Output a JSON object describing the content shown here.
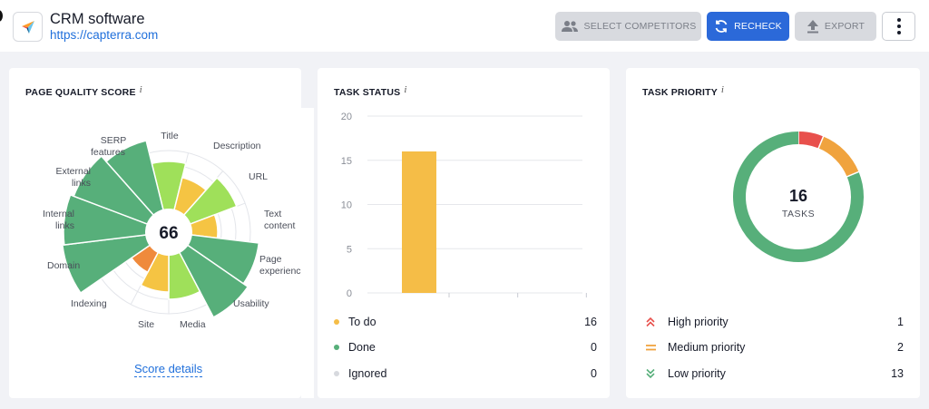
{
  "header": {
    "title": "CRM software",
    "url": "https://capterra.com",
    "buttons": {
      "select_competitors": "SELECT COMPETITORS",
      "recheck": "RECHECK",
      "export": "EXPORT"
    }
  },
  "quality": {
    "title": "PAGE QUALITY SCORE",
    "info": "i",
    "score": "66",
    "details_link": "Score details",
    "colors": {
      "green": "#57af7a",
      "light_green": "#9fe05a",
      "yellow": "#f5c443",
      "orange": "#ef8a3c"
    },
    "labels": {
      "title": "Title",
      "description": "Description",
      "url": "URL",
      "text_content_1": "Text",
      "text_content_2": "content",
      "page_experience_1": "Page",
      "page_experience_2": "experience",
      "usability": "Usability",
      "media": "Media",
      "site": "Site",
      "indexing": "Indexing",
      "domain": "Domain",
      "internal_links_1": "Internal",
      "internal_links_2": "links",
      "external_links_1": "External",
      "external_links_2": "links",
      "serp_features_1": "SERP",
      "serp_features_2": "features"
    }
  },
  "status": {
    "title": "TASK STATUS",
    "info": "i",
    "items": [
      {
        "label": "To do",
        "value": "16",
        "color": "#f5bd47"
      },
      {
        "label": "Done",
        "value": "0",
        "color": "#57af7a"
      },
      {
        "label": "Ignored",
        "value": "0",
        "color": "#d7d9de"
      }
    ]
  },
  "chart_data": {
    "type": "bar",
    "categories": [
      "To do",
      "Done",
      "Ignored"
    ],
    "values": [
      16,
      0,
      0
    ],
    "ylim": [
      0,
      20
    ],
    "yticks": [
      "0",
      "5",
      "10",
      "15",
      "20"
    ],
    "grid": true,
    "colors": [
      "#f5bd47",
      "#57af7a",
      "#d7d9de"
    ]
  },
  "priority": {
    "title": "TASK PRIORITY",
    "info": "i",
    "total": "16",
    "total_label": "TASKS",
    "items": [
      {
        "label": "High priority",
        "value": "1",
        "color": "#e8504c",
        "icon": "double-chevron-up-icon"
      },
      {
        "label": "Medium priority",
        "value": "2",
        "color": "#f0a33e",
        "icon": "equals-icon"
      },
      {
        "label": "Low priority",
        "value": "13",
        "color": "#57af7a",
        "icon": "double-chevron-down-icon"
      }
    ]
  }
}
